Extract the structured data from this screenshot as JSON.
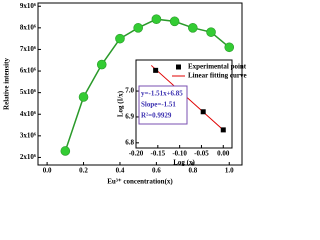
{
  "chart_data": [
    {
      "type": "line",
      "xlabel": "Eu³⁺ concentration(x)",
      "ylabel": "Relative intensity",
      "x": [
        0.1,
        0.2,
        0.3,
        0.4,
        0.5,
        0.6,
        0.7,
        0.8,
        0.9,
        1.0
      ],
      "values": [
        2300000,
        4800000,
        6300000,
        7500000,
        8000000,
        8400000,
        8300000,
        8000000,
        7800000,
        7100000
      ],
      "color": "#33cc33",
      "line_color": "#2a9a2a",
      "xlim": [
        -0.05,
        1.07
      ],
      "xticks": [
        {
          "value": 0,
          "label": "0.0"
        },
        0.2,
        0.4,
        0.6,
        0.8,
        {
          "value": 1,
          "label": "1.0"
        }
      ],
      "ylim": [
        1650000,
        9150000
      ],
      "yticks": [
        {
          "value": 2000000,
          "label": "2x10⁶"
        },
        {
          "value": 3000000,
          "label": "3x10⁶"
        },
        {
          "value": 4000000,
          "label": "4x10⁶"
        },
        {
          "value": 5000000,
          "label": "5x10⁶"
        },
        {
          "value": 6000000,
          "label": "6x10⁶"
        },
        {
          "value": 7000000,
          "label": "7x10⁶"
        },
        {
          "value": 8000000,
          "label": "8x10⁶"
        },
        {
          "value": 9000000,
          "label": "9x10⁶"
        }
      ]
    },
    {
      "type": "scatter",
      "xlabel": "Log (x)",
      "ylabel": "Log (I/x)",
      "series": [
        {
          "name": "Experimental point",
          "color": "#000000",
          "x": [
            -0.155,
            -0.097,
            -0.046,
            0
          ],
          "values": [
            7.08,
            7.0,
            6.92,
            6.85
          ]
        },
        {
          "name": "Linear fitting curve",
          "color": "#e00000",
          "x": [
            -0.165,
            0.005
          ],
          "values": [
            7.099,
            6.842
          ]
        }
      ],
      "annotations": [
        "y=-1.51x+6.85",
        "Slope=-1.51",
        "R²=0.9929"
      ],
      "xlim": [
        -0.2,
        0.02
      ],
      "xticks": [
        {
          "value": -0.2,
          "label": "-0.20"
        },
        {
          "value": -0.15,
          "label": "-0.15"
        },
        {
          "value": -0.1,
          "label": "-0.10"
        },
        {
          "value": -0.05,
          "label": "-0.05"
        },
        {
          "value": 0,
          "label": "0.00"
        }
      ],
      "ylim": [
        6.78,
        7.12
      ],
      "yticks": [
        {
          "value": 6.8,
          "label": "6.8"
        },
        {
          "value": 6.9,
          "label": "6.9"
        },
        {
          "value": 7,
          "label": "7.0"
        }
      ]
    }
  ]
}
